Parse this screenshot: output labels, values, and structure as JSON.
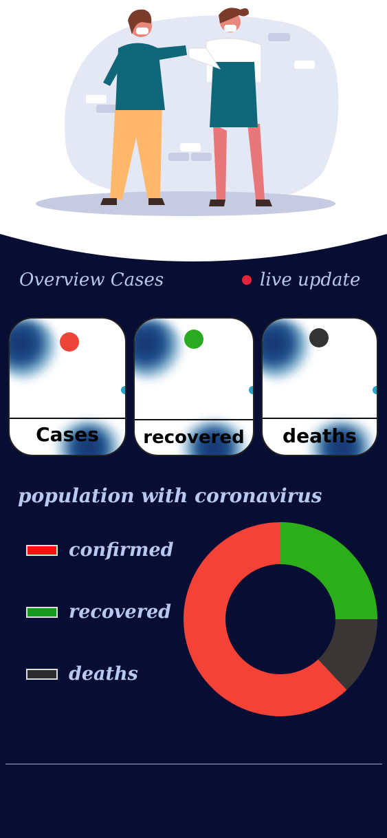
{
  "overview": {
    "title": "Overview Cases",
    "live_label": "live update"
  },
  "cards": [
    {
      "label": "Cases",
      "dot_color": "#ee4339"
    },
    {
      "label": "recovered",
      "dot_color": "#2aa922"
    },
    {
      "label": "deaths",
      "dot_color": "#333333"
    }
  ],
  "population": {
    "title": "population with coronavirus"
  },
  "colors": {
    "background": "#070d33",
    "confirmed": "#f44336",
    "recovered": "#2cae1a",
    "deaths": "#3a3636",
    "live_dot": "#e5243a"
  },
  "icons": [
    "live-dot-icon",
    "people-elbow-bump-illustration"
  ],
  "chart_data": {
    "type": "pie",
    "categories": [
      "confirmed",
      "recovered",
      "deaths"
    ],
    "values": [
      62,
      25,
      13
    ],
    "legend_placement": "left"
  }
}
